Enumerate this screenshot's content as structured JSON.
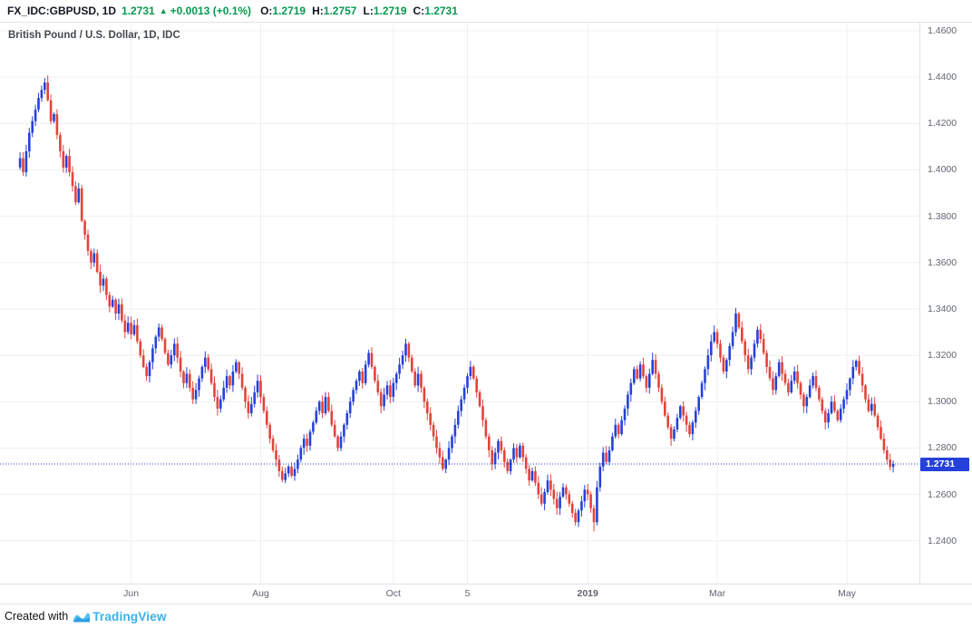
{
  "header": {
    "symbol_interval": "FX_IDC:GBPUSD, 1D",
    "last_price": "1.2731",
    "direction_arrow": "▲",
    "change_text": "+0.0013 (+0.1%)",
    "ohlc": [
      {
        "label": "O:",
        "value": "1.2719"
      },
      {
        "label": "H:",
        "value": "1.2757"
      },
      {
        "label": "L:",
        "value": "1.2719"
      },
      {
        "label": "C:",
        "value": "1.2731"
      }
    ]
  },
  "chart": {
    "colors": {
      "up": "#2641d9",
      "down": "#e2443c",
      "grid": "#efefef",
      "axis_text": "#61656e",
      "price_line": "#2641d9",
      "price_label_bg": "#2641d9",
      "change_green": "#089950"
    }
  },
  "chart_data": {
    "type": "candlestick",
    "symbol": "FX_IDC:GBPUSD",
    "interval": "1D",
    "title": "British Pound / U.S. Dollar, 1D, IDC",
    "price_line": 1.2731,
    "price_line_label": "1.2731",
    "ylim": [
      1.2215,
      1.4635
    ],
    "y_ticks": [
      "1.4600",
      "1.4400",
      "1.4200",
      "1.4000",
      "1.3800",
      "1.3600",
      "1.3400",
      "1.3200",
      "1.3000",
      "1.2800",
      "1.2600",
      "1.2400"
    ],
    "x_ticks": [
      {
        "label": "Jun",
        "index": 36
      },
      {
        "label": "Aug",
        "index": 78
      },
      {
        "label": "Oct",
        "index": 121
      },
      {
        "label": "5",
        "index": 145
      },
      {
        "label": "2019",
        "index": 184,
        "bold": true
      },
      {
        "label": "Mar",
        "index": 226
      },
      {
        "label": "May",
        "index": 268
      }
    ],
    "last_ohlc": {
      "o": 1.2719,
      "h": 1.2757,
      "l": 1.2719,
      "c": 1.2731
    },
    "flash_crash_low": {
      "index": 186,
      "low": 1.244
    },
    "close_series": [
      1.405,
      1.399,
      1.408,
      1.416,
      1.421,
      1.426,
      1.431,
      1.4345,
      1.4377,
      1.43,
      1.421,
      1.424,
      1.415,
      1.408,
      1.401,
      1.406,
      1.399,
      1.393,
      1.386,
      1.392,
      1.378,
      1.372,
      1.365,
      1.36,
      1.364,
      1.356,
      1.35,
      1.353,
      1.346,
      1.341,
      1.344,
      1.338,
      1.342,
      1.335,
      1.33,
      1.334,
      1.329,
      1.333,
      1.326,
      1.32,
      1.315,
      1.311,
      1.317,
      1.323,
      1.328,
      1.332,
      1.327,
      1.321,
      1.316,
      1.32,
      1.325,
      1.319,
      1.313,
      1.308,
      1.312,
      1.306,
      1.301,
      1.305,
      1.31,
      1.315,
      1.319,
      1.314,
      1.308,
      1.302,
      1.297,
      1.301,
      1.306,
      1.311,
      1.307,
      1.313,
      1.317,
      1.312,
      1.306,
      1.3,
      1.295,
      1.299,
      1.304,
      1.309,
      1.302,
      1.296,
      1.29,
      1.284,
      1.279,
      1.275,
      1.27,
      1.2662,
      1.269,
      1.272,
      1.268,
      1.271,
      1.275,
      1.28,
      1.284,
      1.281,
      1.287,
      1.291,
      1.296,
      1.3,
      1.295,
      1.302,
      1.296,
      1.29,
      1.285,
      1.28,
      1.285,
      1.29,
      1.295,
      1.3,
      1.305,
      1.309,
      1.313,
      1.308,
      1.316,
      1.321,
      1.315,
      1.309,
      1.304,
      1.298,
      1.303,
      1.307,
      1.302,
      1.308,
      1.312,
      1.316,
      1.32,
      1.325,
      1.319,
      1.313,
      1.307,
      1.312,
      1.306,
      1.3,
      1.295,
      1.29,
      1.285,
      1.28,
      1.276,
      1.271,
      1.275,
      1.28,
      1.285,
      1.29,
      1.296,
      1.301,
      1.306,
      1.311,
      1.315,
      1.31,
      1.304,
      1.298,
      1.292,
      1.285,
      1.279,
      1.273,
      1.278,
      1.283,
      1.279,
      1.274,
      1.27,
      1.275,
      1.28,
      1.276,
      1.281,
      1.276,
      1.271,
      1.266,
      1.27,
      1.265,
      1.26,
      1.256,
      1.261,
      1.266,
      1.262,
      1.258,
      1.254,
      1.259,
      1.263,
      1.26,
      1.256,
      1.252,
      1.248,
      1.253,
      1.257,
      1.262,
      1.26,
      1.254,
      1.248,
      1.263,
      1.272,
      1.278,
      1.274,
      1.279,
      1.285,
      1.29,
      1.286,
      1.292,
      1.297,
      1.303,
      1.308,
      1.314,
      1.31,
      1.316,
      1.311,
      1.306,
      1.312,
      1.318,
      1.312,
      1.306,
      1.3,
      1.294,
      1.289,
      1.284,
      1.288,
      1.293,
      1.298,
      1.294,
      1.29,
      1.286,
      1.291,
      1.296,
      1.302,
      1.308,
      1.314,
      1.32,
      1.326,
      1.33,
      1.325,
      1.319,
      1.313,
      1.318,
      1.324,
      1.33,
      1.338,
      1.332,
      1.326,
      1.32,
      1.314,
      1.319,
      1.325,
      1.331,
      1.327,
      1.321,
      1.315,
      1.31,
      1.305,
      1.311,
      1.317,
      1.312,
      1.308,
      1.304,
      1.309,
      1.313,
      1.308,
      1.303,
      1.298,
      1.302,
      1.307,
      1.311,
      1.306,
      1.301,
      1.296,
      1.291,
      1.295,
      1.3,
      1.296,
      1.292,
      1.297,
      1.301,
      1.305,
      1.31,
      1.315,
      1.3176,
      1.312,
      1.307,
      1.301,
      1.296,
      1.299,
      1.294,
      1.289,
      1.284,
      1.279,
      1.275,
      1.2719,
      1.2731
    ]
  },
  "footer": {
    "created_with": "Created with",
    "brand": "TradingView"
  }
}
